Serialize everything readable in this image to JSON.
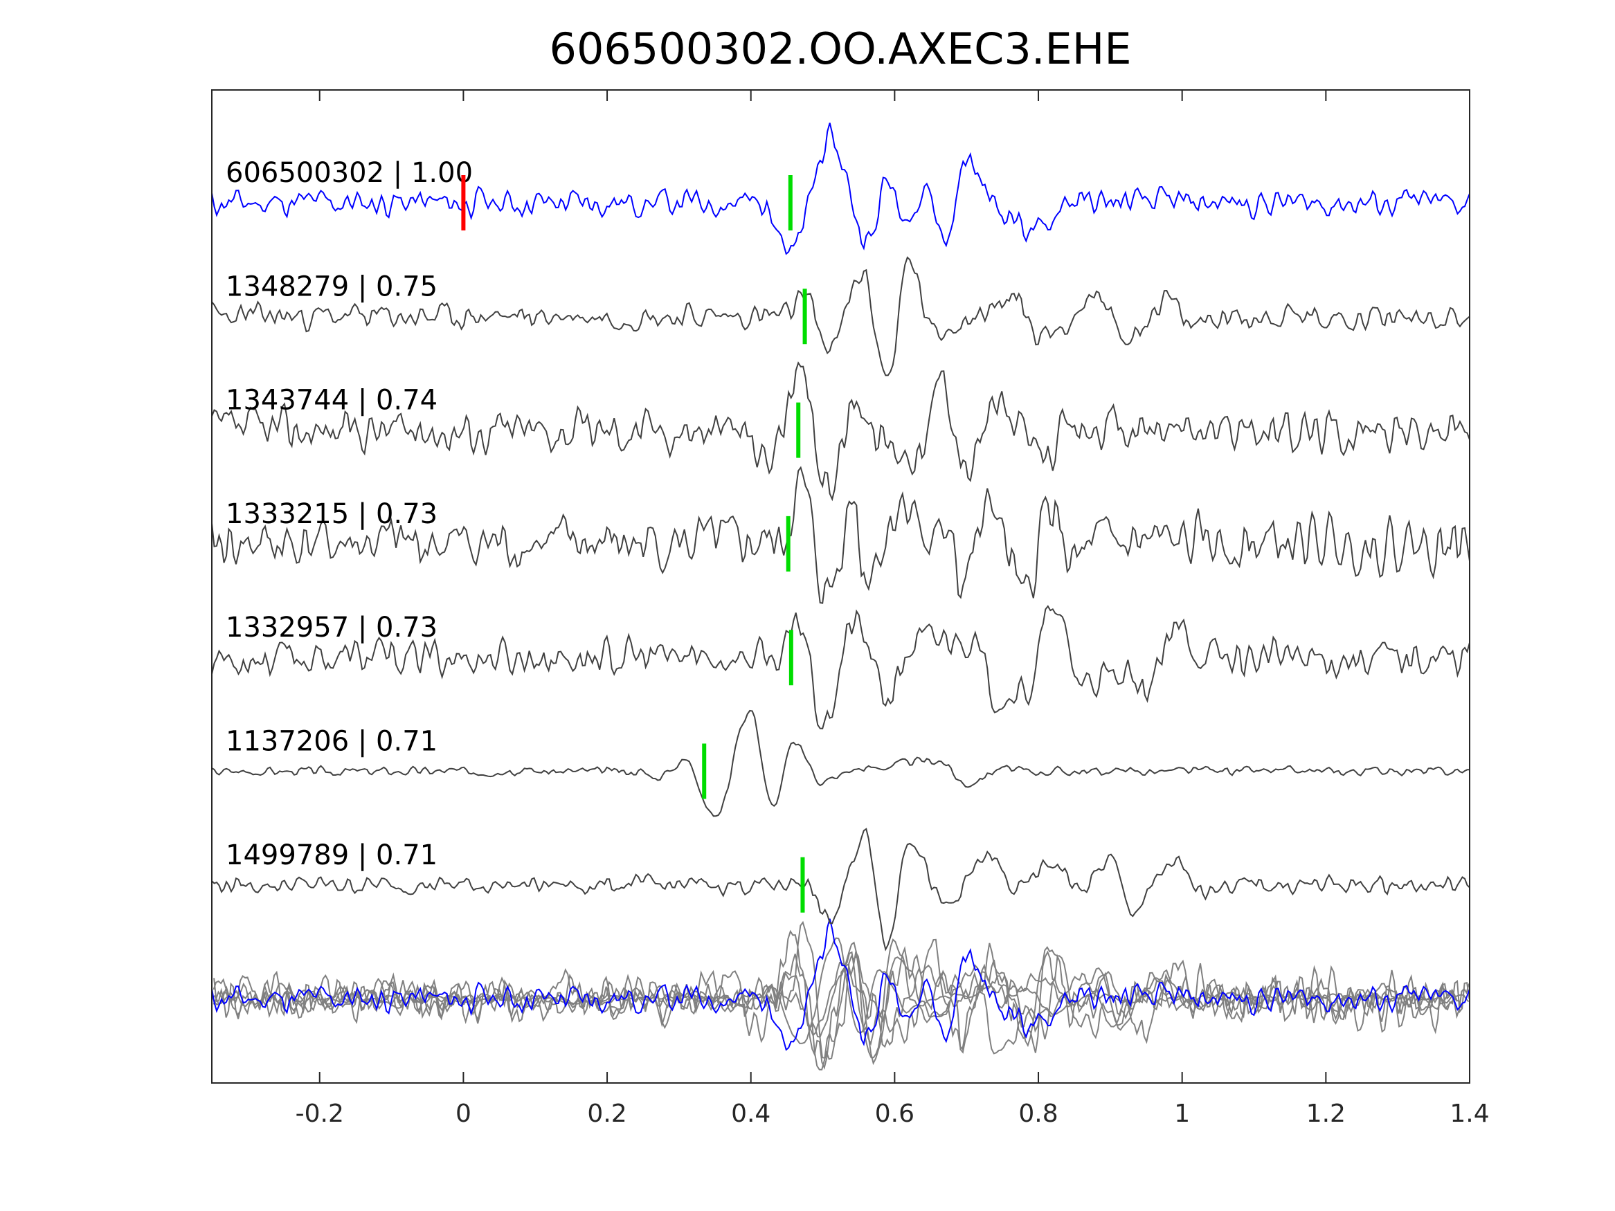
{
  "chart_data": {
    "type": "line",
    "title": "606500302.OO.AXEC3.EHE",
    "xlabel": "",
    "ylabel": "",
    "xlim": [
      -0.35,
      1.4
    ],
    "xticks": [
      -0.2,
      0,
      0.2,
      0.4,
      0.6,
      0.8,
      1,
      1.2,
      1.4
    ],
    "xtick_labels": [
      "-0.2",
      "0",
      "0.2",
      "0.4",
      "0.6",
      "0.8",
      "1",
      "1.2",
      "1.4"
    ],
    "grid": false,
    "reference_pick": 0,
    "colors": {
      "reference": "#0000ff",
      "trace": "#404040",
      "stack": "#808080",
      "pick_ref": "#ff0000",
      "pick": "#00dd00",
      "axis": "#262626"
    },
    "series": [
      {
        "label": "606500302 | 1.00",
        "id": "606500302",
        "cc": 1.0,
        "pick": 0.455,
        "noise": 0.22,
        "seed": 11,
        "extrema": [
          [
            0.43,
            -0.1
          ],
          [
            0.455,
            -0.93
          ],
          [
            0.51,
            1.1
          ],
          [
            0.565,
            -0.7
          ],
          [
            0.59,
            0.44
          ],
          [
            0.625,
            -0.3
          ],
          [
            0.645,
            0.33
          ],
          [
            0.67,
            -0.73
          ],
          [
            0.7,
            0.75
          ],
          [
            0.75,
            -0.15
          ],
          [
            0.8,
            -0.56
          ],
          [
            0.84,
            0.05
          ]
        ]
      },
      {
        "label": "1348279 | 0.75",
        "id": "1348279",
        "cc": 0.75,
        "pick": 0.475,
        "noise": 0.2,
        "seed": 23,
        "extrema": [
          [
            0.45,
            0.0
          ],
          [
            0.475,
            0.4
          ],
          [
            0.51,
            -0.6
          ],
          [
            0.555,
            0.76
          ],
          [
            0.59,
            -1.1
          ],
          [
            0.62,
            1.0
          ],
          [
            0.655,
            -0.33
          ],
          [
            0.7,
            0.0
          ],
          [
            0.77,
            0.3
          ],
          [
            0.8,
            -0.35
          ],
          [
            0.89,
            0.3
          ],
          [
            0.92,
            -0.4
          ],
          [
            0.98,
            0.3
          ],
          [
            1.01,
            -0.2
          ]
        ]
      },
      {
        "label": "1343744 | 0.74",
        "id": "1343744",
        "cc": 0.74,
        "pick": 0.466,
        "noise": 0.35,
        "seed": 37,
        "extrema": [
          [
            0.42,
            -0.5
          ],
          [
            0.47,
            0.84
          ],
          [
            0.505,
            -1.0
          ],
          [
            0.55,
            0.62
          ],
          [
            0.575,
            -0.15
          ],
          [
            0.61,
            -0.3
          ],
          [
            0.64,
            -0.4
          ],
          [
            0.665,
            1.07
          ],
          [
            0.7,
            -0.73
          ],
          [
            0.74,
            0.4
          ],
          [
            0.8,
            -0.4
          ],
          [
            0.85,
            0.0
          ]
        ]
      },
      {
        "label": "1333215 | 0.73",
        "id": "1333215",
        "cc": 0.73,
        "pick": 0.452,
        "noise": 0.42,
        "seed": 41,
        "extrema": [
          [
            0.47,
            1.0
          ],
          [
            0.505,
            -0.93
          ],
          [
            0.545,
            0.9
          ],
          [
            0.555,
            -0.5
          ],
          [
            0.62,
            0.8
          ],
          [
            0.65,
            -0.2
          ],
          [
            0.68,
            0.5
          ],
          [
            0.69,
            -0.7
          ],
          [
            0.74,
            0.7
          ],
          [
            0.76,
            -0.3
          ],
          [
            0.78,
            -1.1
          ],
          [
            0.815,
            0.7
          ],
          [
            0.85,
            -0.4
          ]
        ]
      },
      {
        "label": "1332957 | 0.73",
        "id": "1332957",
        "cc": 0.73,
        "pick": 0.456,
        "noise": 0.3,
        "seed": 53,
        "extrema": [
          [
            0.47,
            0.6
          ],
          [
            0.5,
            -1.1
          ],
          [
            0.545,
            0.6
          ],
          [
            0.59,
            -0.7
          ],
          [
            0.63,
            0.25
          ],
          [
            0.7,
            0.4
          ],
          [
            0.74,
            -0.6
          ],
          [
            0.78,
            -0.65
          ],
          [
            0.82,
            0.8
          ],
          [
            0.86,
            -0.4
          ],
          [
            0.95,
            -0.5
          ],
          [
            1.0,
            0.5
          ]
        ]
      },
      {
        "label": "1137206 | 0.71",
        "id": "1137206",
        "cc": 0.71,
        "pick": 0.335,
        "noise": 0.07,
        "seed": 67,
        "extrema": [
          [
            0.27,
            -0.1
          ],
          [
            0.31,
            0.2
          ],
          [
            0.35,
            -0.82
          ],
          [
            0.4,
            1.1
          ],
          [
            0.43,
            -0.64
          ],
          [
            0.46,
            0.5
          ],
          [
            0.5,
            -0.18
          ],
          [
            0.55,
            0.05
          ],
          [
            0.66,
            0.2
          ],
          [
            0.7,
            -0.22
          ],
          [
            0.75,
            0.05
          ]
        ]
      },
      {
        "label": "1499789 | 0.71",
        "id": "1499789",
        "cc": 0.71,
        "pick": 0.472,
        "noise": 0.14,
        "seed": 79,
        "extrema": [
          [
            0.47,
            0.1
          ],
          [
            0.51,
            -0.64
          ],
          [
            0.56,
            0.9
          ],
          [
            0.59,
            -1.07
          ],
          [
            0.62,
            0.9
          ],
          [
            0.67,
            -0.4
          ],
          [
            0.73,
            0.5
          ],
          [
            0.77,
            -0.1
          ],
          [
            0.82,
            0.4
          ],
          [
            0.86,
            -0.1
          ],
          [
            0.9,
            0.45
          ],
          [
            0.93,
            -0.45
          ],
          [
            0.99,
            0.4
          ],
          [
            1.02,
            -0.1
          ]
        ]
      }
    ],
    "stack": {
      "description_label": "",
      "aligned_to_pick": 0.455
    }
  }
}
